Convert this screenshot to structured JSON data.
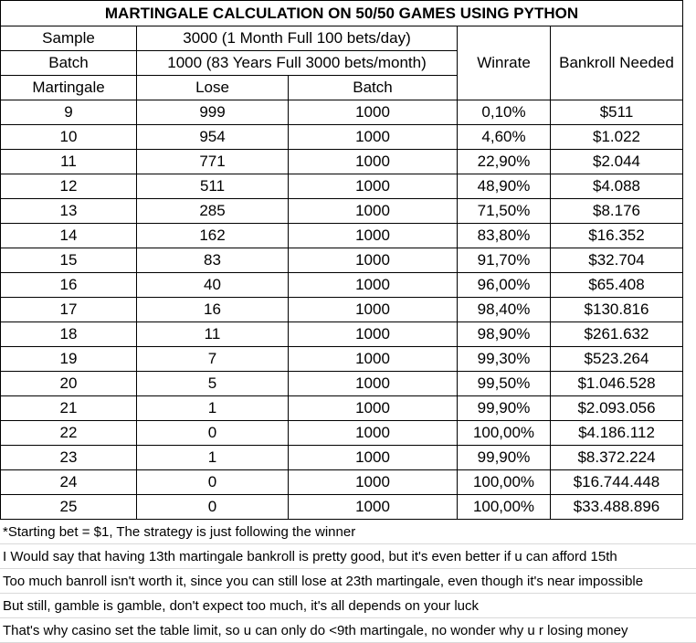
{
  "title": "MARTINGALE CALCULATION ON 50/50 GAMES USING PYTHON",
  "header": {
    "sample_label": "Sample",
    "sample_value": "3000 (1 Month Full 100 bets/day)",
    "batch_label": "Batch",
    "batch_value": "1000 (83 Years Full 3000 bets/month)",
    "col_martingale": "Martingale",
    "col_lose": "Lose",
    "col_batch": "Batch",
    "col_winrate": "Winrate",
    "col_bankroll": "Bankroll Needed"
  },
  "rows": [
    {
      "martingale": "9",
      "lose": "999",
      "batch": "1000",
      "winrate": "0,10%",
      "bankroll": "$511"
    },
    {
      "martingale": "10",
      "lose": "954",
      "batch": "1000",
      "winrate": "4,60%",
      "bankroll": "$1.022"
    },
    {
      "martingale": "11",
      "lose": "771",
      "batch": "1000",
      "winrate": "22,90%",
      "bankroll": "$2.044"
    },
    {
      "martingale": "12",
      "lose": "511",
      "batch": "1000",
      "winrate": "48,90%",
      "bankroll": "$4.088"
    },
    {
      "martingale": "13",
      "lose": "285",
      "batch": "1000",
      "winrate": "71,50%",
      "bankroll": "$8.176"
    },
    {
      "martingale": "14",
      "lose": "162",
      "batch": "1000",
      "winrate": "83,80%",
      "bankroll": "$16.352"
    },
    {
      "martingale": "15",
      "lose": "83",
      "batch": "1000",
      "winrate": "91,70%",
      "bankroll": "$32.704"
    },
    {
      "martingale": "16",
      "lose": "40",
      "batch": "1000",
      "winrate": "96,00%",
      "bankroll": "$65.408"
    },
    {
      "martingale": "17",
      "lose": "16",
      "batch": "1000",
      "winrate": "98,40%",
      "bankroll": "$130.816"
    },
    {
      "martingale": "18",
      "lose": "11",
      "batch": "1000",
      "winrate": "98,90%",
      "bankroll": "$261.632"
    },
    {
      "martingale": "19",
      "lose": "7",
      "batch": "1000",
      "winrate": "99,30%",
      "bankroll": "$523.264"
    },
    {
      "martingale": "20",
      "lose": "5",
      "batch": "1000",
      "winrate": "99,50%",
      "bankroll": "$1.046.528"
    },
    {
      "martingale": "21",
      "lose": "1",
      "batch": "1000",
      "winrate": "99,90%",
      "bankroll": "$2.093.056"
    },
    {
      "martingale": "22",
      "lose": "0",
      "batch": "1000",
      "winrate": "100,00%",
      "bankroll": "$4.186.112"
    },
    {
      "martingale": "23",
      "lose": "1",
      "batch": "1000",
      "winrate": "99,90%",
      "bankroll": "$8.372.224"
    },
    {
      "martingale": "24",
      "lose": "0",
      "batch": "1000",
      "winrate": "100,00%",
      "bankroll": "$16.744.448"
    },
    {
      "martingale": "25",
      "lose": "0",
      "batch": "1000",
      "winrate": "100,00%",
      "bankroll": "$33.488.896"
    }
  ],
  "notes": [
    "*Starting bet = $1, The strategy is just following the winner",
    "I Would say that having 13th martingale bankroll is pretty good, but it's even better if u can afford 15th",
    "Too much banroll isn't worth it, since you can still lose at 23th martingale, even though it's near impossible",
    "But still, gamble is gamble, don't expect too much, it's all depends on your luck",
    "That's why casino set the table limit, so u can only do <9th martingale, no wonder why u r losing money"
  ]
}
